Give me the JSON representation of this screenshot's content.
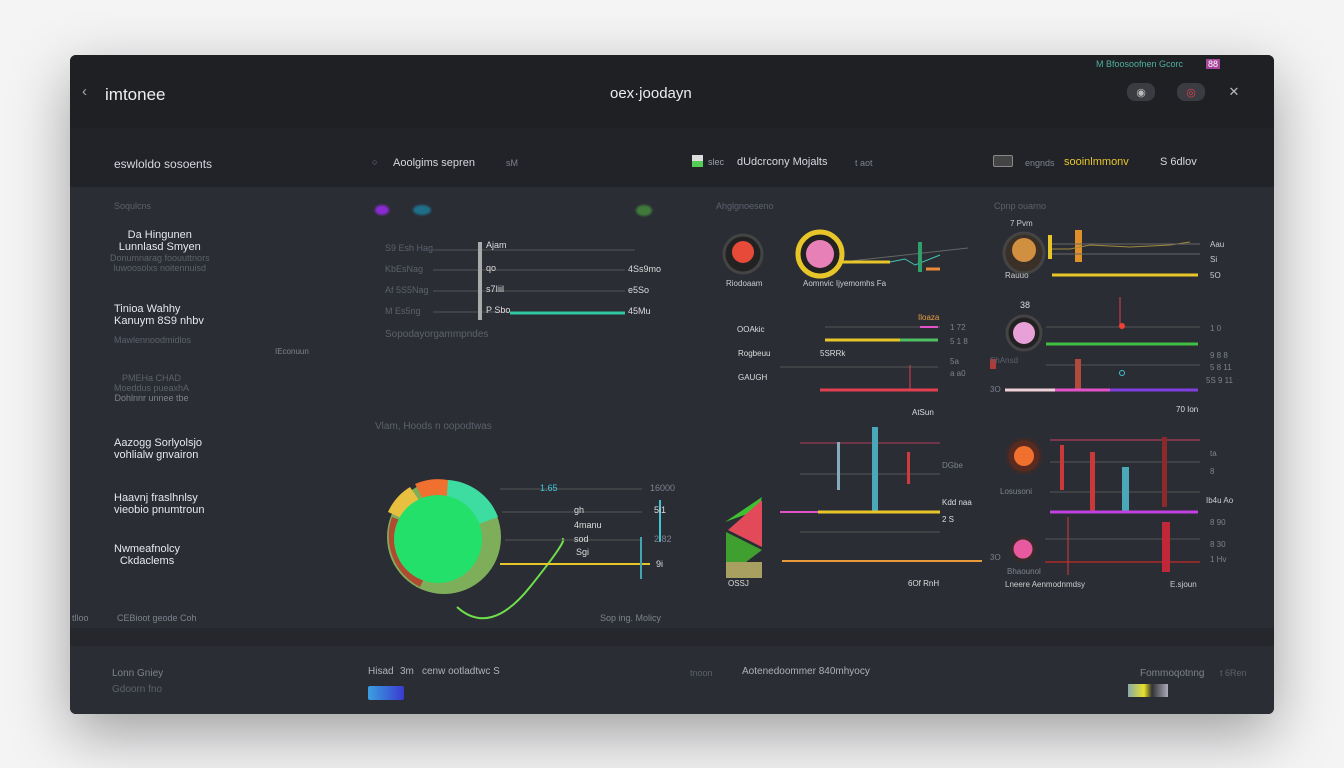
{
  "header": {
    "back_icon": "chevron-left-icon",
    "app_name": "imtonee",
    "title": "oex·joodayn",
    "status": "M Bfoosoofnen Gcorc",
    "status_badge": "88",
    "icons": [
      "camera-icon",
      "record-icon",
      "pin-icon"
    ]
  },
  "subheader": {
    "col1": "eswloldo sosoents",
    "col2": "Aoolgims sepren",
    "col2_suffix": "sM",
    "col3_prefix": "slec",
    "col3": "dUdcrcony Mojalts",
    "col3_suffix": "t aot",
    "col4_prefix": "engnds",
    "col4_highlight": "sooinlmmonv",
    "col4_suffix": "S 6dlov"
  },
  "sidebar": {
    "heading": "Soqulcns",
    "groups": [
      {
        "lines": [
          "Da Hingunen",
          "Lunnlasd Smyen"
        ],
        "sub": [
          "Donumnarag foouuttnors",
          "luwoosolxs noitennuisd"
        ]
      },
      {
        "lines": [
          "Tinioa Wahhy",
          "Kanuym 8S9 nhbv"
        ],
        "sub": [
          "Mawlennoodmidlos"
        ]
      },
      {
        "lines": [],
        "sub": [
          "PMEHa CHAD",
          "Moeddus pueaxhA",
          "Dohlnnr unnee tbe"
        ]
      },
      {
        "lines": [
          "Aazogg Sorlyolsjo",
          "vohlialw gnvairon"
        ],
        "sub": []
      },
      {
        "lines": [
          "Haavnj fraslhnlsy",
          "vieobio pnumtroun"
        ],
        "sub": []
      },
      {
        "lines": [
          "Nwmeafnolcy",
          "Ckdaclems"
        ],
        "sub": []
      }
    ],
    "side_tag": "IEconuun",
    "footer_left": "tlloo",
    "footer_text": "CEBioot geode Coh"
  },
  "line_panel": {
    "y_labels": [
      "S9 Esh Hag",
      "KbEsNag",
      "Af 5S5Nag",
      "M Es5ng"
    ],
    "inner_labels": [
      "Ajam",
      "qo",
      "s7Iiil",
      "P Sbo"
    ],
    "right_values": [
      "4Ss9mo",
      "e5So",
      "45Mu"
    ],
    "caption": "Sopodayorgammpndes",
    "section2": "Vlam, Hoods n oopodtwas"
  },
  "pie_panel": {
    "labels": [
      "1.65",
      "gh",
      "4manu",
      "sod",
      "Sgi"
    ],
    "right_values": [
      "16000",
      "5i1",
      "2.82",
      "9i"
    ],
    "caption": "Sop ing. Molicy"
  },
  "gauge_left": {
    "heading": "Ahglgnoeseno",
    "g1_label": "Riodoaam",
    "g2_label": "Aomnvic Ijyemomhs Fa",
    "rows": [
      "OOAkic",
      "Rogbeuu",
      "GAUGH"
    ],
    "row_values": [
      "1 72",
      "5 1 8",
      "5a",
      "a a0"
    ],
    "badge": "Iloaza",
    "bar_label": "5SRRk",
    "bottom": "AtSun",
    "bar_values": [
      "DGbe",
      "Kdd naa",
      "2 S"
    ],
    "tri_label": "OSSJ",
    "foot": "6Of RnH"
  },
  "gauge_right": {
    "heading": "Cpnp ouarno",
    "top_label": "7 Pvm",
    "values": [
      "Aau",
      "Si",
      "5O"
    ],
    "g_label": "Rauuo",
    "num": "38",
    "row_values": [
      "1 0",
      "9 8 8",
      "5 8 11",
      "5S 9 11"
    ],
    "scale": "3O",
    "bottom": "70 Ion",
    "mid_label": "ShAnsd",
    "label2": "Losusoni",
    "values2": [
      "ta",
      "8",
      "Ib4u Ao",
      "8 90",
      "8 30",
      "1 Hv"
    ],
    "scale2": "3O",
    "g4_label": "Bhaounol",
    "foot1": "Lneere Aenmodnmdsy",
    "foot2": "E.sjoun"
  },
  "footer": {
    "left1": "Lonn Gniey",
    "left2": "Gdoorn fno",
    "mid_prefix": "Hisad",
    "mid_num": "3m",
    "mid_text": "cenw ootladtwc S",
    "center_prefix": "tnoon",
    "center_text": "Aotenedoommer 840mhyocy",
    "right_text": "Fommoqotnng",
    "right_suffix": "t 6Ren"
  },
  "colors": {
    "bg": "#2a2c33",
    "header": "#1f2023",
    "yellow": "#e8c62a",
    "green": "#2fe36a",
    "red": "#e2404f",
    "teal": "#41c5b3",
    "magenta": "#e352c8"
  }
}
